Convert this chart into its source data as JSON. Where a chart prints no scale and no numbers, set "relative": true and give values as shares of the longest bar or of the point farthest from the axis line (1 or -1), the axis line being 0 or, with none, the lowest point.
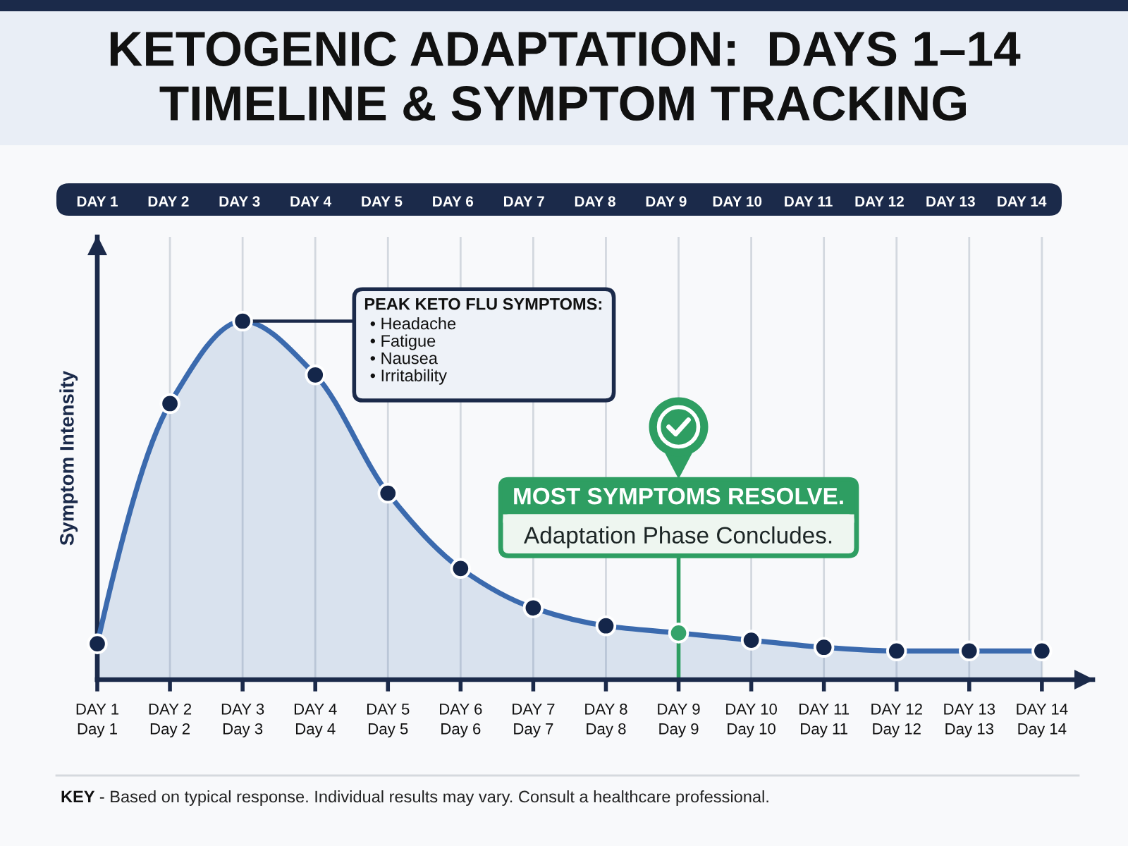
{
  "chart_data": {
    "type": "area",
    "title": "KETOGENIC ADAPTATION:  DAYS 1–14\nTIMELINE & SYMPTOM TRACKING",
    "ylabel": "Symptom Intensity",
    "categories": [
      "DAY 1\nDay 1",
      "DAY 2\nDay 2",
      "DAY 3\nDay 3",
      "DAY 4\nDay 4",
      "DAY 5\nDay 5",
      "DAY 6\nDay 6",
      "DAY 7\nDay 7",
      "DAY 8\nDay 8",
      "DAY 9\nDay 9",
      "DAY 10\nDay 10",
      "DAY 11\nDay 11",
      "DAY 12\nDay 12",
      "DAY 13\nDay 13",
      "DAY 14\nDay 14"
    ],
    "series": [
      {
        "color": "#3b6aae",
        "colors": [
          "#14264a",
          "#14264a",
          "#14264a",
          "#14264a",
          "#14264a",
          "#14264a",
          "#14264a",
          "#14264a",
          "#35a36a",
          "#14264a",
          "#14264a",
          "#14264a",
          "#14264a",
          "#14264a"
        ],
        "values": [
          0.1,
          0.77,
          1,
          0.85,
          0.52,
          0.31,
          0.2,
          0.15,
          0.13,
          0.11,
          0.09,
          0.08,
          0.08,
          0.08
        ]
      }
    ],
    "relative": true,
    "marker": "circle",
    "line_style": "solid",
    "grid": "x",
    "ref_lines": [
      {
        "axis": "x",
        "value": "DAY 9\nDay 9",
        "label": "MOST SYMPTOMS RESOLVE.\nAdaptation Phase Concludes.",
        "color": "#2e9e62"
      }
    ],
    "annotations": [
      "DAY 1",
      "DAY 2",
      "DAY 3",
      "DAY 4",
      "DAY 5",
      "DAY 6",
      "DAY 7",
      "DAY 8",
      "DAY 9",
      "DAY 10",
      "DAY 11",
      "DAY 12",
      "DAY 13",
      "DAY 14",
      {
        "text": "PEAK KETO FLU SYMPTOMS:\n• Headache\n• Fatigue\n• Nausea\n• Irritability",
        "x": "DAY 3\nDay 3",
        "y": 1
      },
      "KEY - Based on typical response. Individual results may vary. Consult a healthcare professional."
    ]
  }
}
